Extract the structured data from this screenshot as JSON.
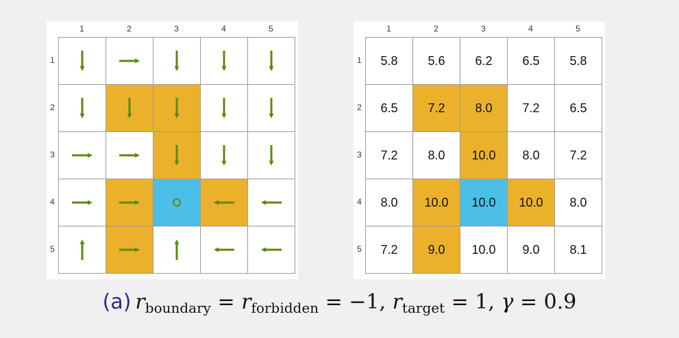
{
  "colors": {
    "forbidden": "#ecb12a",
    "target": "#4bbfe8",
    "arrow": "#5a8a0e",
    "grid": "#9a9a9a"
  },
  "column_labels": [
    "1",
    "2",
    "3",
    "4",
    "5"
  ],
  "row_labels": [
    "1",
    "2",
    "3",
    "4",
    "5"
  ],
  "cell_types": [
    [
      "normal",
      "normal",
      "normal",
      "normal",
      "normal"
    ],
    [
      "normal",
      "forbidden",
      "forbidden",
      "normal",
      "normal"
    ],
    [
      "normal",
      "normal",
      "forbidden",
      "normal",
      "normal"
    ],
    [
      "normal",
      "forbidden",
      "target",
      "forbidden",
      "normal"
    ],
    [
      "normal",
      "forbidden",
      "normal",
      "normal",
      "normal"
    ]
  ],
  "policy": [
    [
      "down",
      "right",
      "down",
      "down",
      "down"
    ],
    [
      "down",
      "down",
      "down",
      "down",
      "down"
    ],
    [
      "right",
      "right",
      "down",
      "down",
      "down"
    ],
    [
      "right",
      "right",
      "stay",
      "left",
      "left"
    ],
    [
      "up",
      "right",
      "up",
      "left",
      "left"
    ]
  ],
  "state_values": [
    [
      "5.8",
      "5.6",
      "6.2",
      "6.5",
      "5.8"
    ],
    [
      "6.5",
      "7.2",
      "8.0",
      "7.2",
      "6.5"
    ],
    [
      "7.2",
      "8.0",
      "10.0",
      "8.0",
      "7.2"
    ],
    [
      "8.0",
      "10.0",
      "10.0",
      "10.0",
      "8.0"
    ],
    [
      "7.2",
      "9.0",
      "10.0",
      "9.0",
      "8.1"
    ]
  ],
  "caption": {
    "tag": "(a)",
    "r": "r",
    "boundary": "boundary",
    "eq1": " = ",
    "forbidden": "forbidden",
    "eq2": " = −1, ",
    "target": "target",
    "eq3": " = 1, ",
    "gamma": "γ",
    "eq4": " = 0.9"
  }
}
